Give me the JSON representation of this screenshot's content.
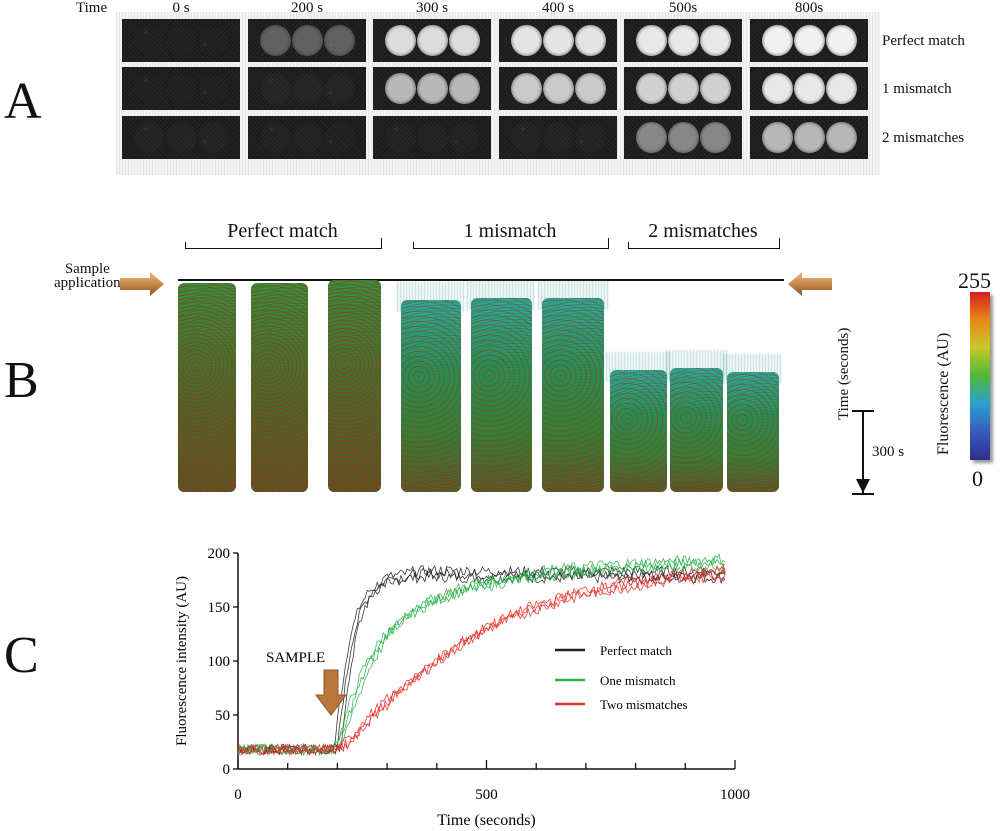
{
  "panel_a": {
    "label": "A",
    "time_header": "Time",
    "times": [
      "0 s",
      "200 s",
      "300 s",
      "400 s",
      "500s",
      "800s"
    ],
    "rows": [
      {
        "label": "Perfect match",
        "brightness": [
          0.05,
          0.55,
          0.95,
          0.97,
          0.98,
          1.0
        ]
      },
      {
        "label": "1 mismatch",
        "brightness": [
          0.05,
          0.15,
          0.85,
          0.9,
          0.92,
          0.98
        ]
      },
      {
        "label": "2 mismatches",
        "brightness": [
          0.12,
          0.08,
          0.1,
          0.12,
          0.7,
          0.85
        ]
      }
    ]
  },
  "panel_b": {
    "label": "B",
    "groups": [
      "Perfect match",
      "1 mismatch",
      "2 mismatches"
    ],
    "sample_application": [
      "Sample",
      "application"
    ],
    "time_axis_label": "Time (seconds)",
    "scale_bar_label": "300 s",
    "colorbar": {
      "title": "Fluorescence (AU)",
      "max": "255",
      "min": "0",
      "colors": [
        "#d41f1f",
        "#e88a1a",
        "#c8c82a",
        "#4fb83a",
        "#2a9fd0",
        "#3a5bc0",
        "#2b2f8a"
      ]
    }
  },
  "panel_c": {
    "label": "C",
    "annotation": "SAMPLE",
    "chart_data": {
      "type": "line",
      "xlabel": "Time (seconds)",
      "ylabel": "Fluorescence intensity (AU)",
      "xlim": [
        0,
        1000
      ],
      "ylim": [
        0,
        200
      ],
      "xticks": [
        0,
        500,
        1000
      ],
      "yticks": [
        0,
        50,
        100,
        150,
        200
      ],
      "legend": "center-right",
      "series": [
        {
          "name": "Perfect match",
          "color": "#222222",
          "x": [
            0,
            100,
            190,
            200,
            210,
            230,
            250,
            270,
            300,
            350,
            400,
            500,
            600,
            700,
            800,
            900,
            980
          ],
          "y": [
            18,
            18,
            18,
            20,
            60,
            120,
            150,
            165,
            175,
            180,
            181,
            180,
            180,
            180,
            180,
            180,
            180
          ]
        },
        {
          "name": "One mismatch",
          "color": "#2ab34a",
          "x": [
            0,
            100,
            190,
            210,
            230,
            260,
            300,
            350,
            400,
            450,
            500,
            600,
            700,
            800,
            900,
            980
          ],
          "y": [
            18,
            18,
            18,
            30,
            60,
            95,
            125,
            145,
            158,
            166,
            172,
            180,
            185,
            188,
            190,
            192
          ]
        },
        {
          "name": "Two mismatches",
          "color": "#e8302a",
          "x": [
            0,
            100,
            190,
            210,
            230,
            260,
            300,
            350,
            400,
            450,
            500,
            550,
            600,
            700,
            800,
            900,
            980
          ],
          "y": [
            18,
            18,
            18,
            20,
            28,
            45,
            62,
            82,
            100,
            116,
            130,
            141,
            150,
            164,
            172,
            178,
            182
          ]
        }
      ]
    }
  }
}
